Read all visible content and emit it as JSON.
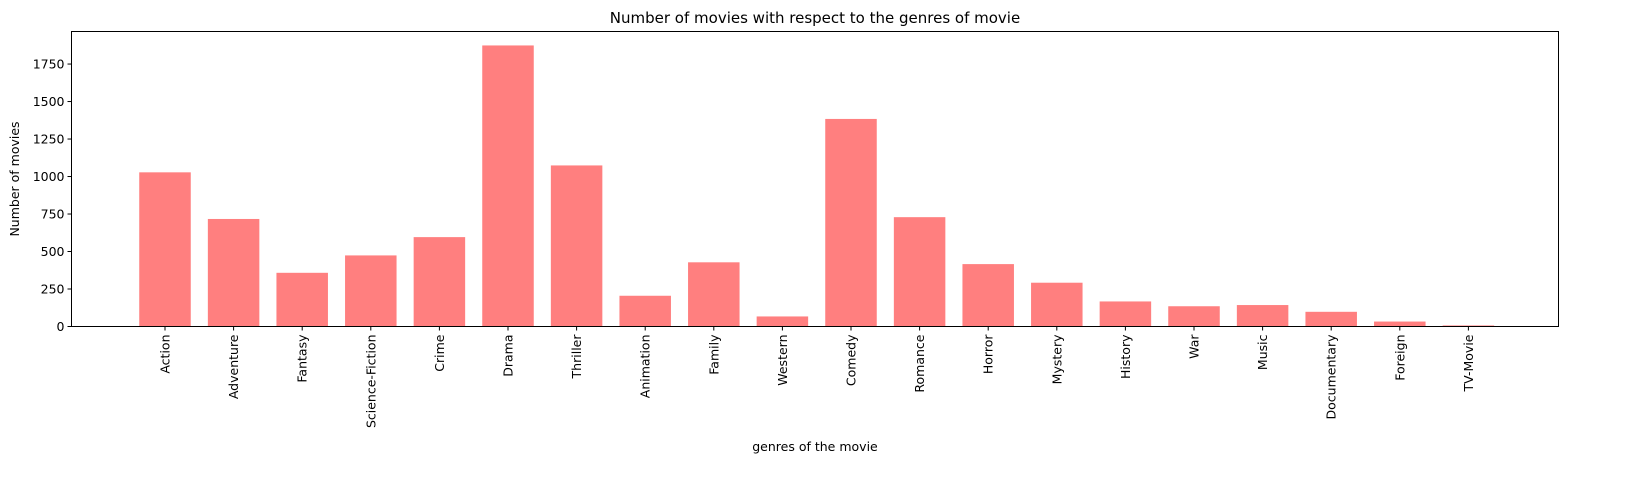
{
  "chart_data": {
    "type": "bar",
    "title": "Number of movies with respect to the genres of movie",
    "xlabel": "genres of the movie",
    "ylabel": "Number of movies",
    "categories": [
      "Action",
      "Adventure",
      "Fantasy",
      "Science-Fiction",
      "Crime",
      "Drama",
      "Thriller",
      "Animation",
      "Family",
      "Western",
      "Comedy",
      "Romance",
      "Horror",
      "Mystery",
      "History",
      "War",
      "Music",
      "Documentary",
      "Foreign",
      "TV-Movie"
    ],
    "values": [
      1028,
      717,
      358,
      474,
      596,
      1874,
      1074,
      205,
      428,
      67,
      1384,
      729,
      416,
      292,
      167,
      135,
      143,
      98,
      33,
      7
    ],
    "yticks": [
      0,
      250,
      500,
      750,
      1000,
      1250,
      1500,
      1750
    ],
    "ylim": [
      0,
      1967
    ],
    "grid": false,
    "legend": "none",
    "bar_color": "#ff7f7f"
  }
}
